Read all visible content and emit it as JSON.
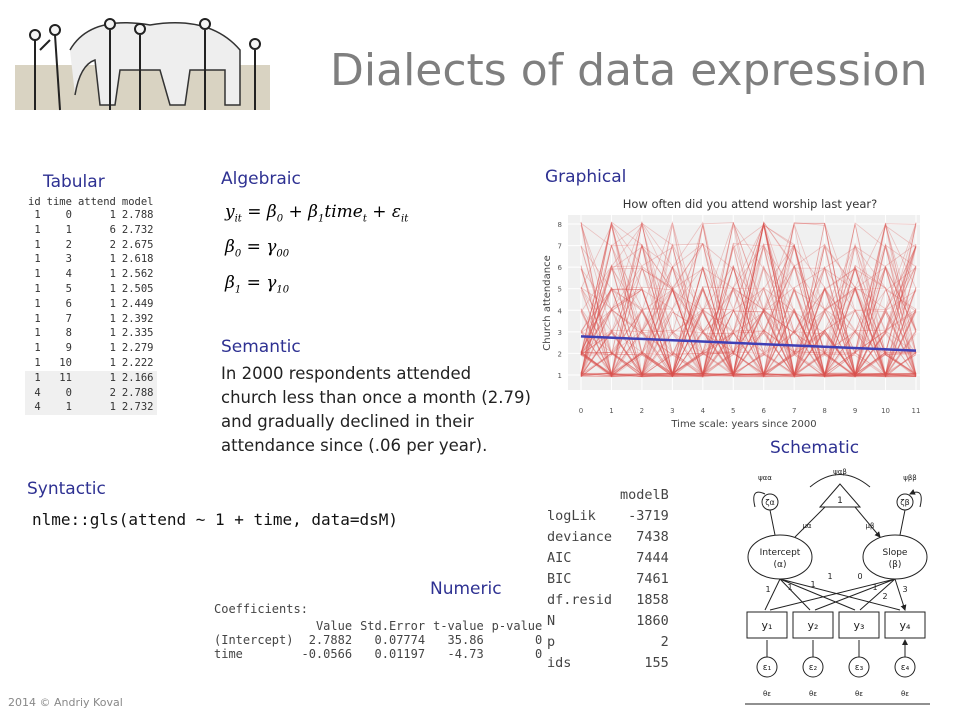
{
  "header": {
    "title": "Dialects of data expression"
  },
  "tabular": {
    "title": "Tabular",
    "columns": [
      "id",
      "time",
      "attend",
      "model"
    ],
    "rows": [
      [
        "1",
        "0",
        "1",
        "2.788"
      ],
      [
        "1",
        "1",
        "6",
        "2.732"
      ],
      [
        "1",
        "2",
        "2",
        "2.675"
      ],
      [
        "1",
        "3",
        "1",
        "2.618"
      ],
      [
        "1",
        "4",
        "1",
        "2.562"
      ],
      [
        "1",
        "5",
        "1",
        "2.505"
      ],
      [
        "1",
        "6",
        "1",
        "2.449"
      ],
      [
        "1",
        "7",
        "1",
        "2.392"
      ],
      [
        "1",
        "8",
        "1",
        "2.335"
      ],
      [
        "1",
        "9",
        "1",
        "2.279"
      ],
      [
        "1",
        "10",
        "1",
        "2.222"
      ],
      [
        "1",
        "11",
        "1",
        "2.166"
      ],
      [
        "4",
        "0",
        "2",
        "2.788"
      ],
      [
        "4",
        "1",
        "1",
        "2.732"
      ]
    ]
  },
  "algebraic": {
    "title": "Algebraic",
    "equations": [
      [
        [
          "y",
          "it"
        ],
        [
          " = β",
          "0"
        ],
        [
          " + β",
          "1"
        ],
        [
          "time",
          "t"
        ],
        [
          " + ε",
          "it"
        ]
      ],
      [
        [
          "β",
          "0"
        ],
        [
          " = γ",
          "00"
        ]
      ],
      [
        [
          "β",
          "1"
        ],
        [
          " = γ",
          "10"
        ]
      ]
    ]
  },
  "semantic": {
    "title": "Semantic",
    "text": "In 2000 respondents attended church less than once a month (2.79) and gradually declined in their attendance since (.06 per year)."
  },
  "syntactic": {
    "title": "Syntactic",
    "code": "nlme::gls(attend ~ 1 + time, data=dsM)"
  },
  "numeric": {
    "title": "Numeric",
    "heading": "Coefficients:",
    "columns": [
      "Value",
      "Std.Error",
      "t-value",
      "p-value"
    ],
    "rows": [
      [
        "(Intercept)",
        "2.7882",
        "0.07774",
        "35.86",
        "0"
      ],
      [
        "time",
        "-0.0566",
        "0.01197",
        "-4.73",
        "0"
      ]
    ],
    "model": {
      "header": "modelB",
      "rows": [
        [
          "logLik",
          "-3719"
        ],
        [
          "deviance",
          "7438"
        ],
        [
          "AIC",
          "7444"
        ],
        [
          "BIC",
          "7461"
        ],
        [
          "df.resid",
          "1858"
        ],
        [
          "N",
          "1860"
        ],
        [
          "p",
          "2"
        ],
        [
          "ids",
          "155"
        ]
      ]
    }
  },
  "graphical": {
    "title": "Graphical",
    "chart_title": "How often did you attend worship last year?",
    "ylabel": "Church attendance",
    "xlabel": "Time scale: years since 2000",
    "xticks": [
      "0",
      "1",
      "2",
      "3",
      "4",
      "5",
      "6",
      "7",
      "8",
      "9",
      "10",
      "11"
    ],
    "yticks": [
      "1",
      "2",
      "3",
      "4",
      "5",
      "6",
      "7",
      "8"
    ]
  },
  "schematic": {
    "title": "Schematic",
    "constant": "1",
    "intercept": "Intercept",
    "intercept_sym": "(α)",
    "slope": "Slope",
    "slope_sym": "(β)",
    "psi_aa": "ψαα",
    "psi_ab": "ψαβ",
    "psi_bb": "ψββ",
    "mu_a": "μα",
    "mu_b": "μβ",
    "zeta_a": "ζα",
    "zeta_b": "ζβ",
    "observed": [
      "y₁",
      "y₂",
      "y₃",
      "y₄"
    ],
    "errors": [
      "ε₁",
      "ε₂",
      "ε₃",
      "ε₄"
    ],
    "theta": "θε",
    "intercept_loadings": [
      "1",
      "1",
      "1",
      "1"
    ],
    "slope_loadings": [
      "0",
      "1",
      "2",
      "3"
    ]
  },
  "footer": {
    "text": "2014 © Andriy Koval"
  }
}
